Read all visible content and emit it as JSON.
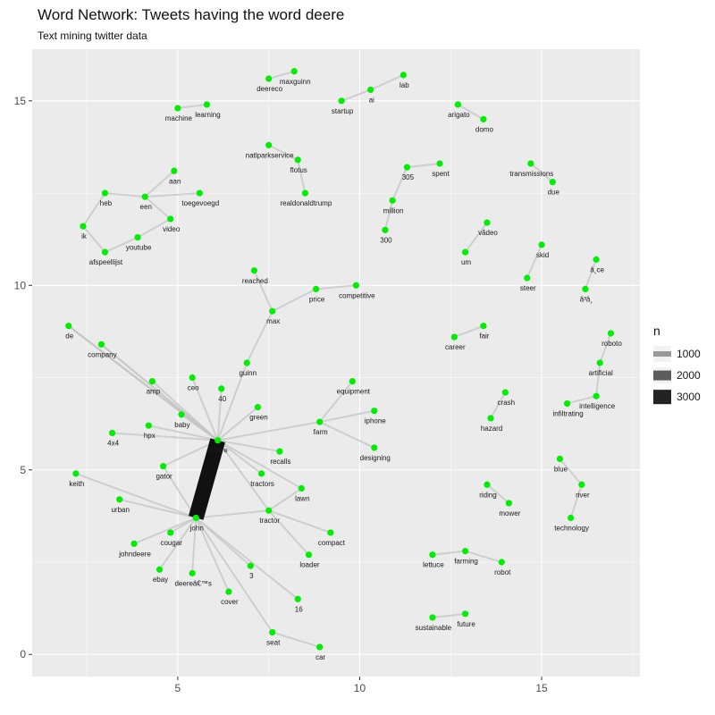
{
  "chart_data": {
    "type": "network",
    "title": "Word Network: Tweets having the word deere",
    "subtitle": "Text mining twitter data",
    "xlim": [
      1.0,
      17.7
    ],
    "ylim": [
      -0.6,
      16.4
    ],
    "x_ticks": [
      5,
      10,
      15
    ],
    "y_ticks": [
      0,
      5,
      10,
      15
    ],
    "grid": true,
    "panel_color": "#ebebeb",
    "node_color": "#00ee00",
    "edge_color": "#111111",
    "legend": {
      "title": "n",
      "position": "right",
      "entries": [
        {
          "label": "1000",
          "n": 1000
        },
        {
          "label": "2000",
          "n": 2000
        },
        {
          "label": "3000",
          "n": 3000
        }
      ]
    },
    "nodes": [
      {
        "name": "deereco",
        "x": 7.5,
        "y": 15.6
      },
      {
        "name": "maxguinn",
        "x": 8.2,
        "y": 15.8
      },
      {
        "name": "startup",
        "x": 9.5,
        "y": 15.0
      },
      {
        "name": "ai",
        "x": 10.3,
        "y": 15.3
      },
      {
        "name": "lab",
        "x": 11.2,
        "y": 15.7
      },
      {
        "name": "arigato",
        "x": 12.7,
        "y": 14.9
      },
      {
        "name": "domo",
        "x": 13.4,
        "y": 14.5
      },
      {
        "name": "machine",
        "x": 5.0,
        "y": 14.8
      },
      {
        "name": "learning",
        "x": 5.8,
        "y": 14.9
      },
      {
        "name": "natlparkservice",
        "x": 7.5,
        "y": 13.8
      },
      {
        "name": "flotus",
        "x": 8.3,
        "y": 13.4
      },
      {
        "name": "realdonaldtrump",
        "x": 8.5,
        "y": 12.5
      },
      {
        "name": "305",
        "x": 11.3,
        "y": 13.2
      },
      {
        "name": "spent",
        "x": 12.2,
        "y": 13.3
      },
      {
        "name": "million",
        "x": 10.9,
        "y": 12.3
      },
      {
        "name": "300",
        "x": 10.7,
        "y": 11.5
      },
      {
        "name": "transmissions",
        "x": 14.7,
        "y": 13.3
      },
      {
        "name": "due",
        "x": 15.3,
        "y": 12.8
      },
      {
        "name": "aan",
        "x": 4.9,
        "y": 13.1
      },
      {
        "name": "heb",
        "x": 3.0,
        "y": 12.5
      },
      {
        "name": "een",
        "x": 4.1,
        "y": 12.4
      },
      {
        "name": "toegevoegd",
        "x": 5.6,
        "y": 12.5
      },
      {
        "name": "ik",
        "x": 2.4,
        "y": 11.6
      },
      {
        "name": "video",
        "x": 4.8,
        "y": 11.8
      },
      {
        "name": "youtube",
        "x": 3.9,
        "y": 11.3
      },
      {
        "name": "afspeellijst",
        "x": 3.0,
        "y": 10.9
      },
      {
        "name": "vâ­deo",
        "x": 13.5,
        "y": 11.7
      },
      {
        "name": "um",
        "x": 12.9,
        "y": 10.9
      },
      {
        "name": "skid",
        "x": 15.0,
        "y": 11.1
      },
      {
        "name": "steer",
        "x": 14.6,
        "y": 10.2
      },
      {
        "name": "â¸ce",
        "x": 16.5,
        "y": 10.7
      },
      {
        "name": "â³â¸",
        "x": 16.2,
        "y": 9.9
      },
      {
        "name": "reached",
        "x": 7.1,
        "y": 10.4
      },
      {
        "name": "price",
        "x": 8.8,
        "y": 9.9
      },
      {
        "name": "competitive",
        "x": 9.9,
        "y": 10.0
      },
      {
        "name": "max",
        "x": 7.6,
        "y": 9.3
      },
      {
        "name": "de",
        "x": 2.0,
        "y": 8.9
      },
      {
        "name": "company",
        "x": 2.9,
        "y": 8.4
      },
      {
        "name": "career",
        "x": 12.6,
        "y": 8.6
      },
      {
        "name": "fair",
        "x": 13.4,
        "y": 8.9
      },
      {
        "name": "roboto",
        "x": 16.9,
        "y": 8.7
      },
      {
        "name": "artificial",
        "x": 16.6,
        "y": 7.9
      },
      {
        "name": "guinn",
        "x": 6.9,
        "y": 7.9
      },
      {
        "name": "amp",
        "x": 4.3,
        "y": 7.4
      },
      {
        "name": "ceo",
        "x": 5.4,
        "y": 7.5
      },
      {
        "name": "40",
        "x": 6.2,
        "y": 7.2
      },
      {
        "name": "equipment",
        "x": 9.8,
        "y": 7.4
      },
      {
        "name": "crash",
        "x": 14.0,
        "y": 7.1
      },
      {
        "name": "intelligence",
        "x": 16.5,
        "y": 7.0
      },
      {
        "name": "infiltrating",
        "x": 15.7,
        "y": 6.8
      },
      {
        "name": "green",
        "x": 7.2,
        "y": 6.7
      },
      {
        "name": "baby",
        "x": 5.1,
        "y": 6.5
      },
      {
        "name": "hazard",
        "x": 13.6,
        "y": 6.4
      },
      {
        "name": "iphone",
        "x": 10.4,
        "y": 6.6
      },
      {
        "name": "farm",
        "x": 8.9,
        "y": 6.3
      },
      {
        "name": "4x4",
        "x": 3.2,
        "y": 6.0
      },
      {
        "name": "hpx",
        "x": 4.2,
        "y": 6.2
      },
      {
        "name": "deere",
        "x": 6.1,
        "y": 5.8
      },
      {
        "name": "recalls",
        "x": 7.8,
        "y": 5.5
      },
      {
        "name": "designing",
        "x": 10.4,
        "y": 5.6
      },
      {
        "name": "gator",
        "x": 4.6,
        "y": 5.1
      },
      {
        "name": "blue",
        "x": 15.5,
        "y": 5.3
      },
      {
        "name": "keith",
        "x": 2.2,
        "y": 4.9
      },
      {
        "name": "tractors",
        "x": 7.3,
        "y": 4.9
      },
      {
        "name": "river",
        "x": 16.1,
        "y": 4.6
      },
      {
        "name": "lawn",
        "x": 8.4,
        "y": 4.5
      },
      {
        "name": "riding",
        "x": 13.5,
        "y": 4.6
      },
      {
        "name": "urban",
        "x": 3.4,
        "y": 4.2
      },
      {
        "name": "mower",
        "x": 14.1,
        "y": 4.1
      },
      {
        "name": "tractor",
        "x": 7.5,
        "y": 3.9
      },
      {
        "name": "john",
        "x": 5.5,
        "y": 3.7
      },
      {
        "name": "technology",
        "x": 15.8,
        "y": 3.7
      },
      {
        "name": "cougar",
        "x": 4.8,
        "y": 3.3
      },
      {
        "name": "compact",
        "x": 9.2,
        "y": 3.3
      },
      {
        "name": "johndeere",
        "x": 3.8,
        "y": 3.0
      },
      {
        "name": "loader",
        "x": 8.6,
        "y": 2.7
      },
      {
        "name": "lettuce",
        "x": 12.0,
        "y": 2.7
      },
      {
        "name": "farming",
        "x": 12.9,
        "y": 2.8
      },
      {
        "name": "robot",
        "x": 13.9,
        "y": 2.5
      },
      {
        "name": "ebay",
        "x": 4.5,
        "y": 2.3
      },
      {
        "name": "deereâ€™s",
        "x": 5.4,
        "y": 2.2
      },
      {
        "name": "3",
        "x": 7.0,
        "y": 2.4
      },
      {
        "name": "cover",
        "x": 6.4,
        "y": 1.7
      },
      {
        "name": "16",
        "x": 8.3,
        "y": 1.5
      },
      {
        "name": "sustainable",
        "x": 12.0,
        "y": 1.0
      },
      {
        "name": "future",
        "x": 12.9,
        "y": 1.1
      },
      {
        "name": "seat",
        "x": 7.6,
        "y": 0.6
      },
      {
        "name": "car",
        "x": 8.9,
        "y": 0.2
      }
    ],
    "edges": [
      {
        "from": "deere",
        "to": "john",
        "n": 3300
      },
      {
        "from": "de",
        "to": "deere",
        "n": 250
      },
      {
        "from": "company",
        "to": "deere",
        "n": 220
      },
      {
        "from": "amp",
        "to": "deere",
        "n": 150
      },
      {
        "from": "ceo",
        "to": "deere",
        "n": 150
      },
      {
        "from": "40",
        "to": "deere",
        "n": 150
      },
      {
        "from": "guinn",
        "to": "deere",
        "n": 150
      },
      {
        "from": "baby",
        "to": "deere",
        "n": 150
      },
      {
        "from": "hpx",
        "to": "deere",
        "n": 150
      },
      {
        "from": "4x4",
        "to": "deere",
        "n": 150
      },
      {
        "from": "gator",
        "to": "deere",
        "n": 150
      },
      {
        "from": "green",
        "to": "deere",
        "n": 150
      },
      {
        "from": "farm",
        "to": "deere",
        "n": 150
      },
      {
        "from": "recalls",
        "to": "deere",
        "n": 150
      },
      {
        "from": "tractors",
        "to": "deere",
        "n": 150
      },
      {
        "from": "lawn",
        "to": "deere",
        "n": 150
      },
      {
        "from": "tractor",
        "to": "deere",
        "n": 150
      },
      {
        "from": "keith",
        "to": "john",
        "n": 150
      },
      {
        "from": "urban",
        "to": "john",
        "n": 150
      },
      {
        "from": "cougar",
        "to": "john",
        "n": 150
      },
      {
        "from": "johndeere",
        "to": "john",
        "n": 150
      },
      {
        "from": "ebay",
        "to": "john",
        "n": 150
      },
      {
        "from": "deereâ€™s",
        "to": "john",
        "n": 150
      },
      {
        "from": "3",
        "to": "john",
        "n": 150
      },
      {
        "from": "cover",
        "to": "john",
        "n": 150
      },
      {
        "from": "16",
        "to": "john",
        "n": 150
      },
      {
        "from": "seat",
        "to": "john",
        "n": 150
      },
      {
        "from": "tractor",
        "to": "john",
        "n": 150
      },
      {
        "from": "gator",
        "to": "john",
        "n": 150
      },
      {
        "from": "lawn",
        "to": "tractor",
        "n": 150
      },
      {
        "from": "compact",
        "to": "tractor",
        "n": 150
      },
      {
        "from": "loader",
        "to": "tractor",
        "n": 150
      },
      {
        "from": "seat",
        "to": "car",
        "n": 150
      },
      {
        "from": "guinn",
        "to": "max",
        "n": 150
      },
      {
        "from": "max",
        "to": "reached",
        "n": 150
      },
      {
        "from": "max",
        "to": "price",
        "n": 150
      },
      {
        "from": "price",
        "to": "competitive",
        "n": 150
      },
      {
        "from": "farm",
        "to": "equipment",
        "n": 150
      },
      {
        "from": "farm",
        "to": "iphone",
        "n": 150
      },
      {
        "from": "farm",
        "to": "designing",
        "n": 150
      },
      {
        "from": "deereco",
        "to": "maxguinn",
        "n": 150
      },
      {
        "from": "startup",
        "to": "ai",
        "n": 150
      },
      {
        "from": "ai",
        "to": "lab",
        "n": 150
      },
      {
        "from": "arigato",
        "to": "domo",
        "n": 150
      },
      {
        "from": "machine",
        "to": "learning",
        "n": 150
      },
      {
        "from": "natlparkservice",
        "to": "flotus",
        "n": 150
      },
      {
        "from": "flotus",
        "to": "realdonaldtrump",
        "n": 150
      },
      {
        "from": "305",
        "to": "spent",
        "n": 150
      },
      {
        "from": "305",
        "to": "million",
        "n": 150
      },
      {
        "from": "million",
        "to": "300",
        "n": 150
      },
      {
        "from": "transmissions",
        "to": "due",
        "n": 150
      },
      {
        "from": "aan",
        "to": "een",
        "n": 150
      },
      {
        "from": "heb",
        "to": "een",
        "n": 150
      },
      {
        "from": "een",
        "to": "toegevoegd",
        "n": 150
      },
      {
        "from": "een",
        "to": "video",
        "n": 150
      },
      {
        "from": "heb",
        "to": "ik",
        "n": 150
      },
      {
        "from": "ik",
        "to": "afspeellijst",
        "n": 150
      },
      {
        "from": "afspeellijst",
        "to": "youtube",
        "n": 150
      },
      {
        "from": "youtube",
        "to": "video",
        "n": 150
      },
      {
        "from": "vâ­deo",
        "to": "um",
        "n": 150
      },
      {
        "from": "skid",
        "to": "steer",
        "n": 150
      },
      {
        "from": "â¸ce",
        "to": "â³â¸",
        "n": 150
      },
      {
        "from": "career",
        "to": "fair",
        "n": 150
      },
      {
        "from": "roboto",
        "to": "artificial",
        "n": 150
      },
      {
        "from": "artificial",
        "to": "intelligence",
        "n": 150
      },
      {
        "from": "infiltrating",
        "to": "intelligence",
        "n": 150
      },
      {
        "from": "crash",
        "to": "hazard",
        "n": 150
      },
      {
        "from": "blue",
        "to": "river",
        "n": 150
      },
      {
        "from": "river",
        "to": "technology",
        "n": 150
      },
      {
        "from": "riding",
        "to": "mower",
        "n": 150
      },
      {
        "from": "lettuce",
        "to": "farming",
        "n": 150
      },
      {
        "from": "farming",
        "to": "robot",
        "n": 150
      },
      {
        "from": "sustainable",
        "to": "future",
        "n": 150
      }
    ]
  }
}
